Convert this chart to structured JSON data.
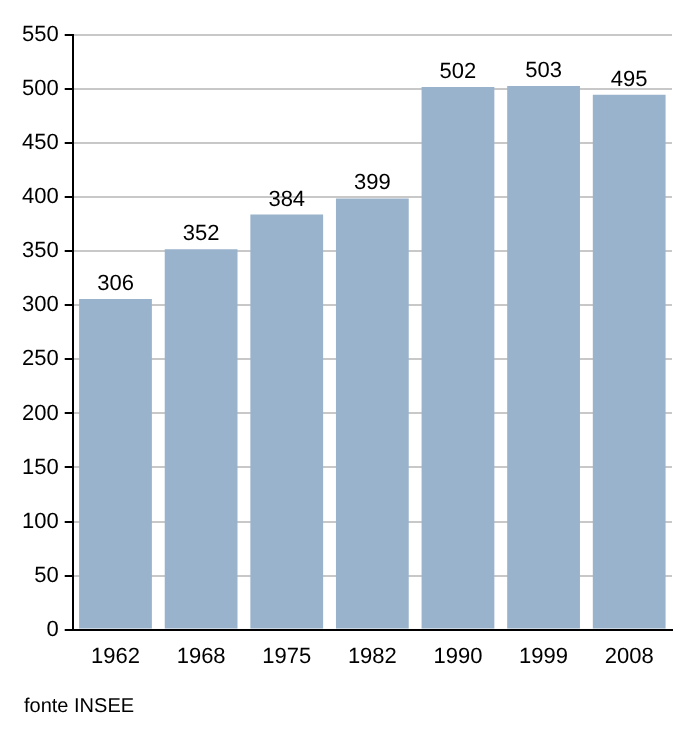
{
  "chart_data": {
    "type": "bar",
    "categories": [
      "1962",
      "1968",
      "1975",
      "1982",
      "1990",
      "1999",
      "2008"
    ],
    "values": [
      306,
      352,
      384,
      399,
      502,
      503,
      495
    ],
    "color": "#9ab3cc",
    "ylim": [
      0,
      550
    ],
    "yticks": [
      0,
      50,
      100,
      150,
      200,
      250,
      300,
      350,
      400,
      450,
      500,
      550
    ],
    "grid": "y",
    "data_labels": true,
    "annotations": [
      "fonte INSEE"
    ]
  }
}
